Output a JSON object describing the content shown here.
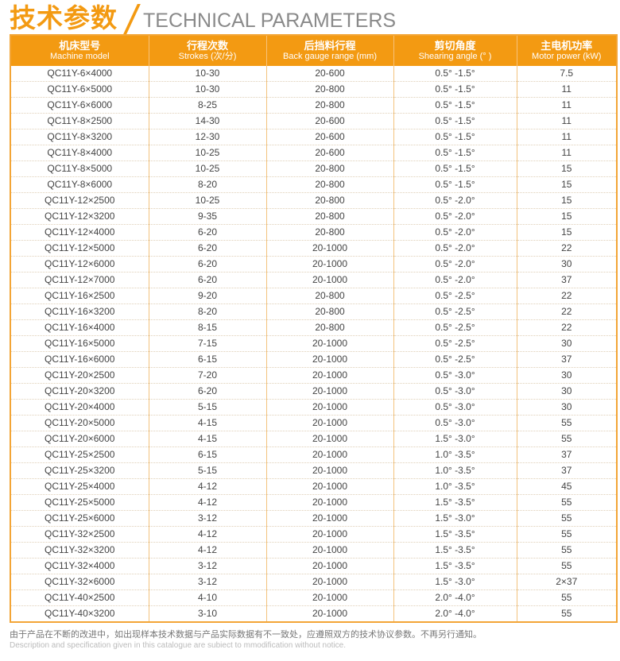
{
  "title": {
    "cn": "技术参数",
    "en": "TECHNICAL PARAMETERS"
  },
  "colors": {
    "accent": "#f39a12"
  },
  "table": {
    "headers": [
      {
        "cn": "机床型号",
        "en": "Machine model"
      },
      {
        "cn": "行程次数",
        "en": "Strokes (次/分)"
      },
      {
        "cn": "后挡料行程",
        "en": "Back gauge range (mm)"
      },
      {
        "cn": "剪切角度",
        "en": "Shearing angle (°  )"
      },
      {
        "cn": "主电机功率",
        "en": "Motor power (kW)"
      }
    ],
    "rows": [
      [
        "QC11Y-6×4000",
        "10-30",
        "20-600",
        "0.5°  -1.5°",
        "7.5"
      ],
      [
        "QC11Y-6×5000",
        "10-30",
        "20-800",
        "0.5°  -1.5°",
        "11"
      ],
      [
        "QC11Y-6×6000",
        "8-25",
        "20-800",
        "0.5°  -1.5°",
        "11"
      ],
      [
        "QC11Y-8×2500",
        "14-30",
        "20-600",
        "0.5°  -1.5°",
        "11"
      ],
      [
        "QC11Y-8×3200",
        "12-30",
        "20-600",
        "0.5°  -1.5°",
        "11"
      ],
      [
        "QC11Y-8×4000",
        "10-25",
        "20-600",
        "0.5°  -1.5°",
        "11"
      ],
      [
        "QC11Y-8×5000",
        "10-25",
        "20-800",
        "0.5°  -1.5°",
        "15"
      ],
      [
        "QC11Y-8×6000",
        "8-20",
        "20-800",
        "0.5°  -1.5°",
        "15"
      ],
      [
        "QC11Y-12×2500",
        "10-25",
        "20-800",
        "0.5°  -2.0°",
        "15"
      ],
      [
        "QC11Y-12×3200",
        "9-35",
        "20-800",
        "0.5°  -2.0°",
        "15"
      ],
      [
        "QC11Y-12×4000",
        "6-20",
        "20-800",
        "0.5°  -2.0°",
        "15"
      ],
      [
        "QC11Y-12×5000",
        "6-20",
        "20-1000",
        "0.5°  -2.0°",
        "22"
      ],
      [
        "QC11Y-12×6000",
        "6-20",
        "20-1000",
        "0.5°  -2.0°",
        "30"
      ],
      [
        "QC11Y-12×7000",
        "6-20",
        "20-1000",
        "0.5°  -2.0°",
        "37"
      ],
      [
        "QC11Y-16×2500",
        "9-20",
        "20-800",
        "0.5°  -2.5°",
        "22"
      ],
      [
        "QC11Y-16×3200",
        "8-20",
        "20-800",
        "0.5°  -2.5°",
        "22"
      ],
      [
        "QC11Y-16×4000",
        "8-15",
        "20-800",
        "0.5°  -2.5°",
        "22"
      ],
      [
        "QC11Y-16×5000",
        "7-15",
        "20-1000",
        "0.5°  -2.5°",
        "30"
      ],
      [
        "QC11Y-16×6000",
        "6-15",
        "20-1000",
        "0.5°  -2.5°",
        "37"
      ],
      [
        "QC11Y-20×2500",
        "7-20",
        "20-1000",
        "0.5°  -3.0°",
        "30"
      ],
      [
        "QC11Y-20×3200",
        "6-20",
        "20-1000",
        "0.5°  -3.0°",
        "30"
      ],
      [
        "QC11Y-20×4000",
        "5-15",
        "20-1000",
        "0.5°  -3.0°",
        "30"
      ],
      [
        "QC11Y-20×5000",
        "4-15",
        "20-1000",
        "0.5°  -3.0°",
        "55"
      ],
      [
        "QC11Y-20×6000",
        "4-15",
        "20-1000",
        "1.5°  -3.0°",
        "55"
      ],
      [
        "QC11Y-25×2500",
        "6-15",
        "20-1000",
        "1.0°  -3.5°",
        "37"
      ],
      [
        "QC11Y-25×3200",
        "5-15",
        "20-1000",
        "1.0°  -3.5°",
        "37"
      ],
      [
        "QC11Y-25×4000",
        "4-12",
        "20-1000",
        "1.0°  -3.5°",
        "45"
      ],
      [
        "QC11Y-25×5000",
        "4-12",
        "20-1000",
        "1.5°  -3.5°",
        "55"
      ],
      [
        "QC11Y-25×6000",
        "3-12",
        "20-1000",
        "1.5°  -3.0°",
        "55"
      ],
      [
        "QC11Y-32×2500",
        "4-12",
        "20-1000",
        "1.5°  -3.5°",
        "55"
      ],
      [
        "QC11Y-32×3200",
        "4-12",
        "20-1000",
        "1.5°  -3.5°",
        "55"
      ],
      [
        "QC11Y-32×4000",
        "3-12",
        "20-1000",
        "1.5°  -3.5°",
        "55"
      ],
      [
        "QC11Y-32×6000",
        "3-12",
        "20-1000",
        "1.5°  -3.0°",
        "2×37"
      ],
      [
        "QC11Y-40×2500",
        "4-10",
        "20-1000",
        "2.0°  -4.0°",
        "55"
      ],
      [
        "QC11Y-40×3200",
        "3-10",
        "20-1000",
        "2.0°  -4.0°",
        "55"
      ]
    ]
  },
  "footer": {
    "note_cn": "由于产品在不断的改进中，如出现样本技术数据与产品实际数据有不一致处，应遵照双方的技术协议参数。不再另行通知。",
    "note_en": "Description and specification given in this catalogue are subiect to mmodification without notice."
  }
}
